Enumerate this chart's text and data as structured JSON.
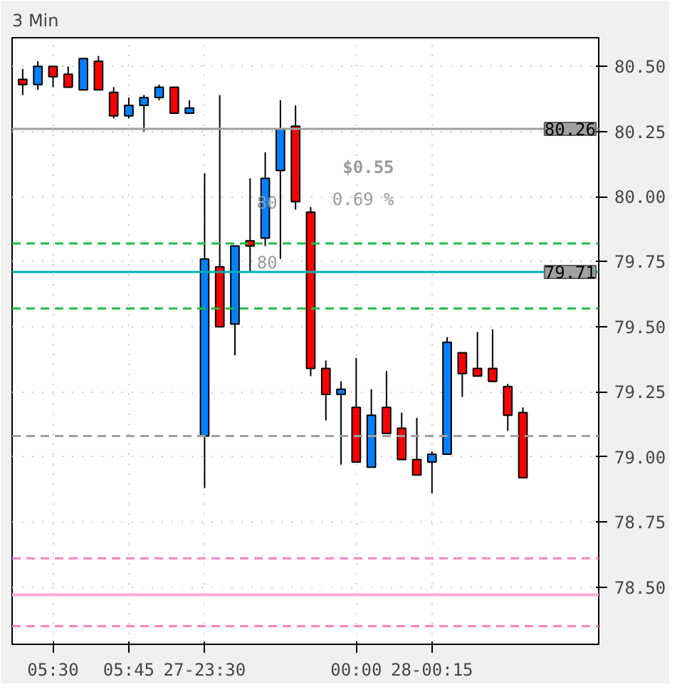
{
  "chart_data": {
    "type": "candlestick",
    "title": "3 Min",
    "categories": [
      null,
      null,
      "05:30",
      null,
      null,
      null,
      null,
      "05:45",
      null,
      null,
      null,
      null,
      "27-23:30",
      null,
      null,
      null,
      null,
      null,
      null,
      null,
      null,
      null,
      "00:00",
      null,
      null,
      null,
      null,
      "28-00:15",
      null,
      null,
      null,
      null,
      null,
      null
    ],
    "ohlc": [
      [
        80.45,
        80.49,
        80.39,
        80.43
      ],
      [
        80.43,
        80.52,
        80.41,
        80.5
      ],
      [
        80.5,
        80.5,
        80.42,
        80.46
      ],
      [
        80.47,
        80.5,
        80.42,
        80.42
      ],
      [
        80.41,
        80.53,
        80.41,
        80.53
      ],
      [
        80.52,
        80.54,
        80.41,
        80.41
      ],
      [
        80.4,
        80.42,
        80.3,
        80.31
      ],
      [
        80.31,
        80.38,
        80.3,
        80.35
      ],
      [
        80.35,
        80.39,
        80.25,
        80.38
      ],
      [
        80.38,
        80.43,
        80.37,
        80.42
      ],
      [
        80.42,
        80.42,
        80.32,
        80.32
      ],
      [
        80.32,
        80.37,
        80.32,
        80.34
      ],
      [
        79.08,
        80.09,
        78.88,
        79.76
      ],
      [
        79.73,
        80.39,
        79.5,
        79.5
      ],
      [
        79.51,
        79.81,
        79.39,
        79.81
      ],
      [
        79.83,
        80.07,
        79.71,
        79.81
      ],
      [
        79.84,
        80.17,
        79.81,
        80.07
      ],
      [
        80.1,
        80.37,
        79.76,
        80.26
      ],
      [
        80.27,
        80.35,
        79.95,
        79.98
      ],
      [
        79.94,
        79.96,
        79.31,
        79.34
      ],
      [
        79.34,
        79.37,
        79.14,
        79.24
      ],
      [
        79.24,
        79.29,
        78.97,
        79.26
      ],
      [
        79.19,
        79.38,
        78.98,
        78.98
      ],
      [
        78.96,
        79.26,
        78.96,
        79.16
      ],
      [
        79.19,
        79.33,
        79.09,
        79.09
      ],
      [
        79.11,
        79.17,
        78.99,
        78.99
      ],
      [
        78.99,
        79.15,
        78.93,
        78.93
      ],
      [
        78.98,
        79.02,
        78.86,
        79.01
      ],
      [
        79.01,
        79.46,
        79.01,
        79.44
      ],
      [
        79.4,
        79.4,
        79.23,
        79.32
      ],
      [
        79.34,
        79.48,
        79.31,
        79.31
      ],
      [
        79.34,
        79.49,
        79.29,
        79.29
      ],
      [
        79.27,
        79.28,
        79.1,
        79.16
      ],
      [
        79.17,
        79.19,
        78.92,
        78.92
      ]
    ],
    "colors": [
      "#ff0000",
      "#0080ff",
      "#ff0000",
      "#ff0000",
      "#0080ff",
      "#ff0000",
      "#ff0000",
      "#0080ff",
      "#0080ff",
      "#0080ff",
      "#ff0000",
      "#0080ff",
      "#0080ff",
      "#ff0000",
      "#0080ff",
      "#ff0000",
      "#0080ff",
      "#0080ff",
      "#ff0000",
      "#ff0000",
      "#ff0000",
      "#0080ff",
      "#ff0000",
      "#0080ff",
      "#ff0000",
      "#ff0000",
      "#ff0000",
      "#0080ff",
      "#0080ff",
      "#ff0000",
      "#ff0000",
      "#ff0000",
      "#ff0000",
      "#ff0000"
    ],
    "ylim": [
      78.28,
      80.61
    ],
    "yticks": [
      {
        "value": 78.5,
        "label": "78.50"
      },
      {
        "value": 78.75,
        "label": "78.75"
      },
      {
        "value": 79.0,
        "label": "79.00"
      },
      {
        "value": 79.25,
        "label": "79.25"
      },
      {
        "value": 79.5,
        "label": "79.50"
      },
      {
        "value": 79.75,
        "label": "79.75"
      },
      {
        "value": 80.0,
        "label": "80.00"
      },
      {
        "value": 80.25,
        "label": "80.25"
      },
      {
        "value": 80.5,
        "label": "80.50"
      }
    ],
    "ref_lines": [
      {
        "axis": "y",
        "value": 80.26,
        "label": "80.26",
        "color": "#a0a0a0",
        "line_style": "solid"
      },
      {
        "axis": "y",
        "value": 79.82,
        "color": "#22bb44",
        "line_style": "dashed"
      },
      {
        "axis": "y",
        "value": 79.71,
        "label": "79.71",
        "color": "#00b0b0",
        "line_style": "solid"
      },
      {
        "axis": "y",
        "value": 79.57,
        "color": "#22bb44",
        "line_style": "dashed"
      },
      {
        "axis": "y",
        "value": 79.08,
        "color": "#a0a0a0",
        "line_style": "dashed"
      },
      {
        "axis": "y",
        "value": 78.61,
        "color": "#ff80c0",
        "line_style": "dashed"
      },
      {
        "axis": "y",
        "value": 78.47,
        "color": "#ffa8d8",
        "line_style": "solid"
      },
      {
        "axis": "y",
        "value": 78.35,
        "color": "#ff80c0",
        "line_style": "dashed"
      }
    ],
    "annotations": [
      "$0.55",
      "0.69 %",
      "80",
      "80"
    ],
    "grid": true
  }
}
